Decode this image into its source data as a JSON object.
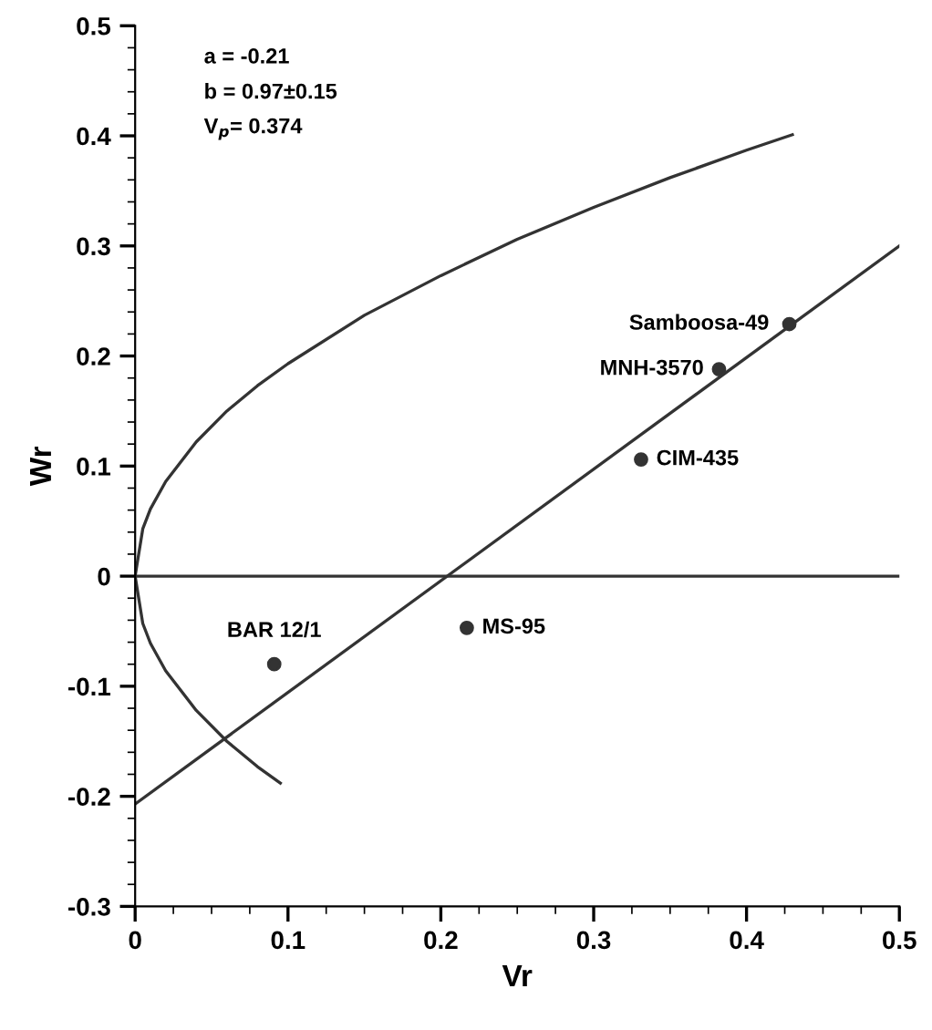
{
  "chart_data": {
    "type": "scatter",
    "xlabel": "Vr",
    "ylabel": "Wr",
    "xlim": [
      0,
      0.5
    ],
    "ylim": [
      -0.3,
      0.5
    ],
    "xticks": [
      {
        "value": 0,
        "label": "0"
      },
      0.1,
      0.2,
      0.3,
      0.4,
      0.5
    ],
    "yticks": [
      -0.3,
      -0.2,
      -0.1,
      {
        "value": 0,
        "label": "0"
      },
      0.1,
      0.2,
      0.3,
      0.4,
      0.5
    ],
    "grid": false,
    "legend": false,
    "series": [
      {
        "color": "#333333",
        "marker": "circle",
        "x": [
          0.428,
          0.382,
          0.331,
          0.217,
          0.091
        ],
        "values": [
          0.229,
          0.188,
          0.106,
          -0.047,
          -0.08
        ]
      },
      {
        "type": "line",
        "color": "#333333",
        "marker": "none",
        "line_style": "solid",
        "x": [
          0.095,
          0.08,
          0.06,
          0.04,
          0.02,
          0.01,
          0.005,
          0,
          0.005,
          0.01,
          0.02,
          0.04,
          0.06,
          0.08,
          0.1,
          0.15,
          0.2,
          0.25,
          0.3,
          0.35,
          0.4,
          0.43
        ],
        "values": [
          -0.188,
          -0.173,
          -0.15,
          -0.122,
          -0.086,
          -0.061,
          -0.043,
          0,
          0.043,
          0.061,
          0.086,
          0.122,
          0.15,
          0.173,
          0.193,
          0.237,
          0.273,
          0.306,
          0.335,
          0.362,
          0.387,
          0.401
        ]
      },
      {
        "type": "line",
        "color": "#333333",
        "marker": "none",
        "line_style": "solid",
        "x": [
          0,
          0.5
        ],
        "values": [
          -0.207,
          0.3
        ]
      }
    ],
    "ref_lines": [
      {
        "axis": "y",
        "value": 0,
        "color": "#333333",
        "line_style": "solid"
      }
    ],
    "annotations": [
      "a = -0.21",
      "b = 0.97±0.15",
      "V$_{p}$= 0.374",
      {
        "text": "Samboosa-49",
        "x": 0.428,
        "y": 0.229
      },
      {
        "text": "MNH-3570",
        "x": 0.382,
        "y": 0.188
      },
      {
        "text": "CIM-435",
        "x": 0.331,
        "y": 0.106
      },
      {
        "text": "MS-95",
        "x": 0.217,
        "y": -0.047
      },
      {
        "text": "BAR 12/1",
        "x": 0.091,
        "y": -0.08
      }
    ]
  }
}
